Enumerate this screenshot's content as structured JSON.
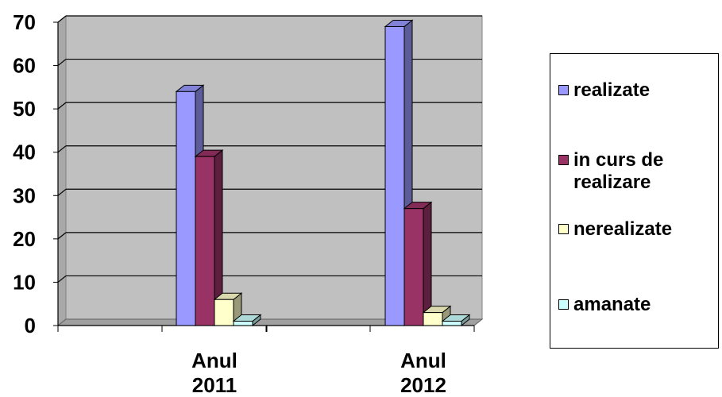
{
  "chart_data": {
    "type": "bar",
    "categories": [
      "Anul\n2011",
      "Anul\n2012"
    ],
    "series": [
      {
        "name": "realizate",
        "values": [
          54,
          69
        ],
        "color": "#9999ff"
      },
      {
        "name": "in curs de\nrealizare",
        "values": [
          39,
          27
        ],
        "color": "#993366"
      },
      {
        "name": "nerealizate",
        "values": [
          6,
          3
        ],
        "color": "#ffffcc"
      },
      {
        "name": "amanate",
        "values": [
          1,
          1
        ],
        "color": "#ccffff"
      }
    ],
    "yticks": [
      "0",
      "10",
      "20",
      "30",
      "40",
      "50",
      "60",
      "70"
    ],
    "ylim": [
      0,
      70
    ],
    "grid": true,
    "legend": "right",
    "plot_background": "#c0c0c0"
  }
}
